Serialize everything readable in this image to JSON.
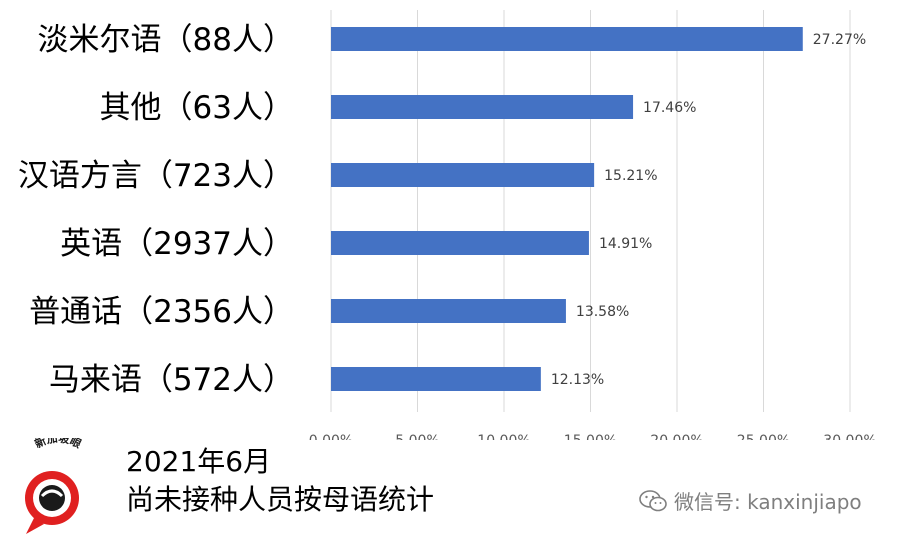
{
  "chart_data": {
    "type": "bar",
    "orientation": "horizontal",
    "categories": [
      "淡米尔语（88人）",
      "其他（63人）",
      "汉语方言（723人）",
      "英语（2937人）",
      "普通话（2356人）",
      "马来语（572人）"
    ],
    "values": [
      27.27,
      17.46,
      15.21,
      14.91,
      13.58,
      12.13
    ],
    "data_labels": [
      "27.27%",
      "17.46%",
      "15.21%",
      "14.91%",
      "13.58%",
      "12.13%"
    ],
    "xlim": [
      0,
      30
    ],
    "x_ticks": [
      "0.00%",
      "5.00%",
      "10.00%",
      "15.00%",
      "20.00%",
      "25.00%",
      "30.00%"
    ],
    "grid": "vertical",
    "bar_color": "#4472c4"
  },
  "footer": {
    "date": "2021年6月",
    "description": "尚未接种人员按母语统计"
  },
  "logo": {
    "text": "新加坡眼",
    "colors": {
      "ring": "#e02020",
      "dark": "#1a1a1a"
    }
  },
  "watermark": {
    "text": "微信号: kanxinjiapo",
    "icon": "wechat-icon"
  }
}
